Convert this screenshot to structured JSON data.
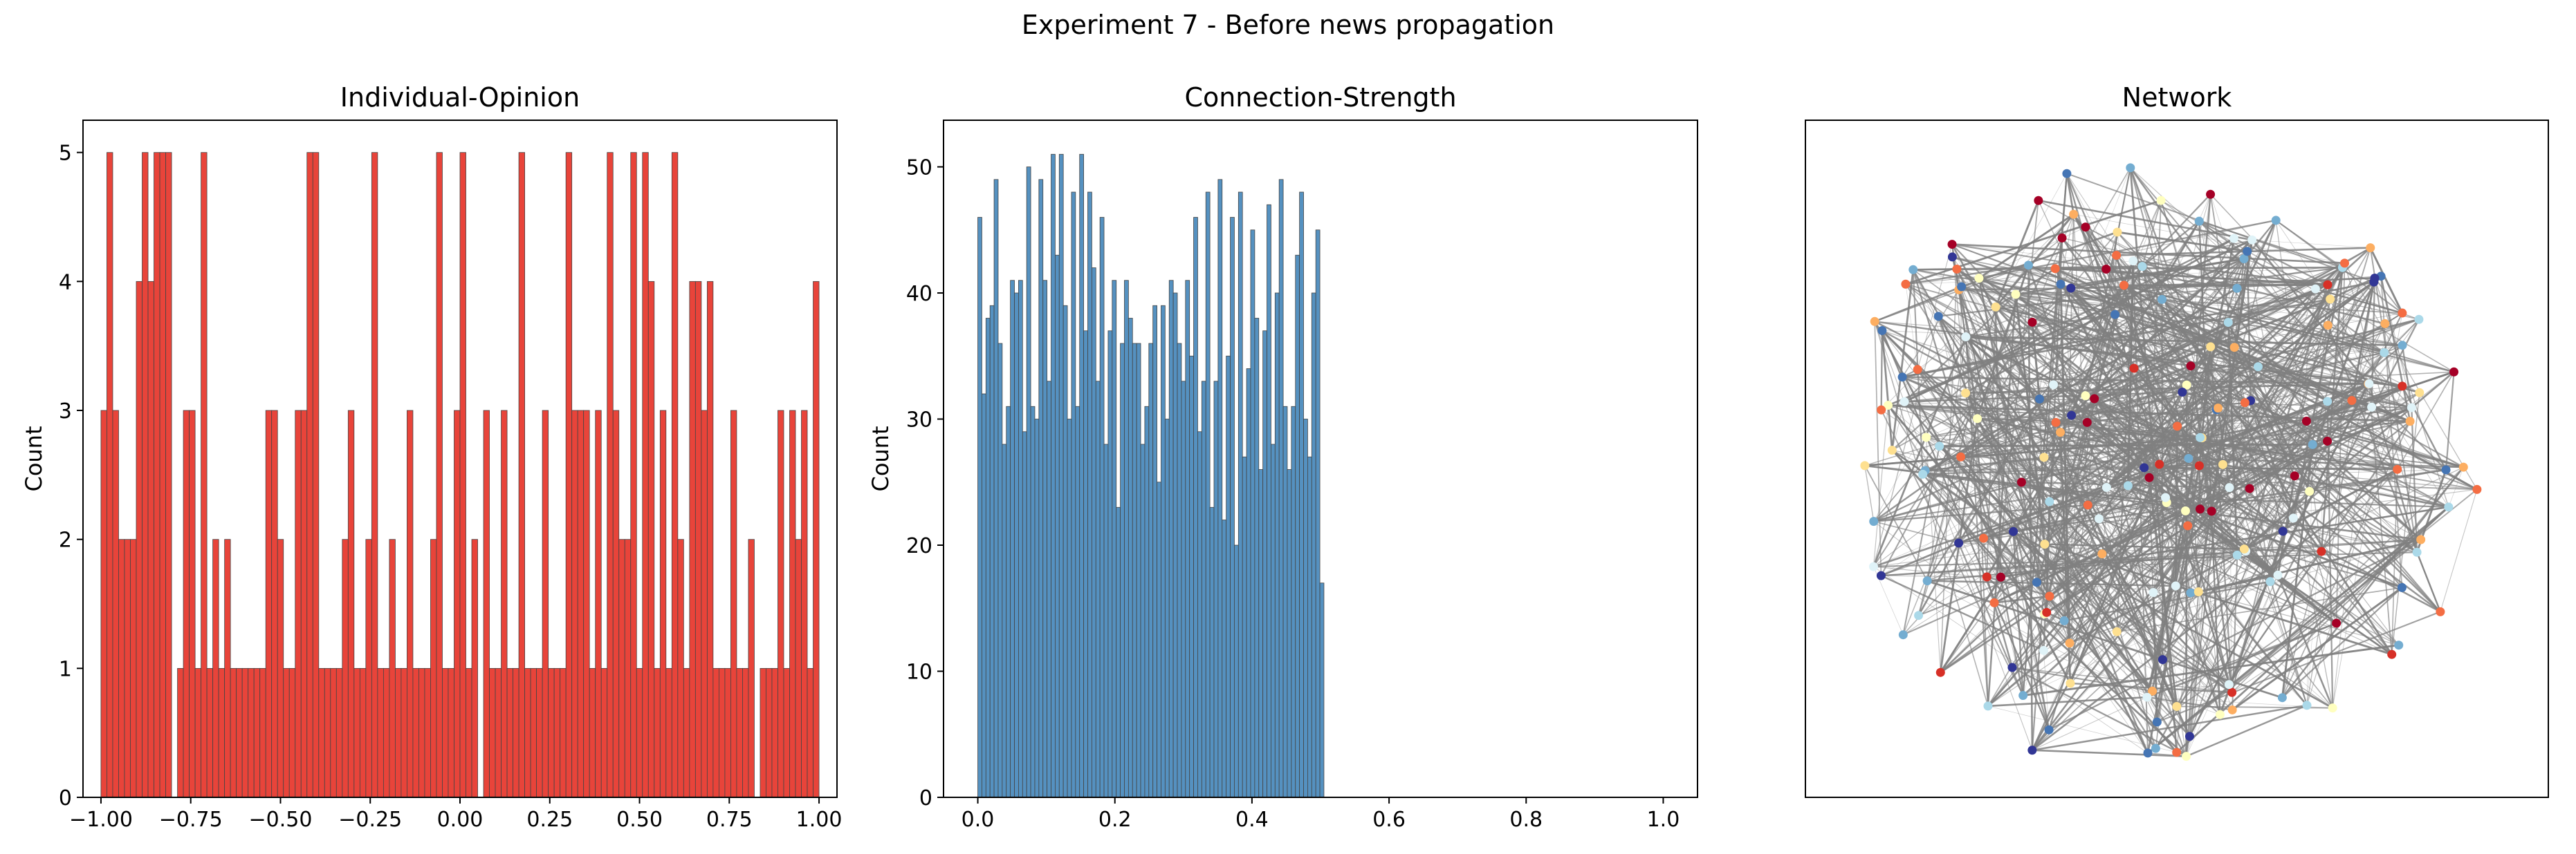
{
  "figure": {
    "suptitle": "Experiment 7 - Before news propagation"
  },
  "chart_data": [
    {
      "type": "bar",
      "title": "Individual-Opinion",
      "xlabel": "",
      "ylabel": "Count",
      "xlim": [
        -1.05,
        1.05
      ],
      "ylim": [
        0,
        5.25
      ],
      "bin_range": [
        -1.0,
        1.0
      ],
      "xticks": [
        -1.0,
        -0.75,
        -0.5,
        -0.25,
        0.0,
        0.25,
        0.5,
        0.75,
        1.0
      ],
      "xtick_labels": [
        "−1.00",
        "−0.75",
        "−0.50",
        "−0.25",
        "0.00",
        "0.25",
        "0.50",
        "0.75",
        "1.00"
      ],
      "yticks": [
        0,
        1,
        2,
        3,
        4,
        5
      ],
      "ytick_labels": [
        "0",
        "1",
        "2",
        "3",
        "4",
        "5"
      ],
      "color": "#e8443a",
      "values": [
        3,
        5,
        3,
        2,
        2,
        2,
        4,
        5,
        4,
        5,
        5,
        5,
        0,
        1,
        3,
        3,
        1,
        5,
        1,
        2,
        1,
        2,
        1,
        1,
        1,
        1,
        1,
        1,
        3,
        3,
        2,
        1,
        1,
        3,
        3,
        5,
        5,
        1,
        1,
        1,
        1,
        2,
        3,
        1,
        1,
        2,
        5,
        1,
        1,
        2,
        1,
        1,
        3,
        1,
        1,
        1,
        2,
        5,
        1,
        1,
        3,
        5,
        1,
        2,
        0,
        3,
        1,
        1,
        3,
        1,
        1,
        5,
        1,
        1,
        1,
        3,
        1,
        1,
        1,
        5,
        3,
        3,
        3,
        1,
        3,
        1,
        5,
        3,
        2,
        2,
        5,
        1,
        5,
        4,
        1,
        3,
        1,
        5,
        2,
        1,
        4,
        4,
        3,
        4,
        1,
        1,
        1,
        3,
        1,
        1,
        2,
        0,
        1,
        1,
        1,
        3,
        1,
        3,
        2,
        3,
        1,
        4
      ]
    },
    {
      "type": "bar",
      "title": "Connection-Strength",
      "xlabel": "",
      "ylabel": "Count",
      "xlim": [
        -0.05,
        1.05
      ],
      "ylim": [
        0,
        53.7
      ],
      "bin_range": [
        0,
        0.505
      ],
      "xticks": [
        0.0,
        0.2,
        0.4,
        0.6,
        0.8,
        1.0
      ],
      "xtick_labels": [
        "0.0",
        "0.2",
        "0.4",
        "0.6",
        "0.8",
        "1.0"
      ],
      "yticks": [
        0,
        10,
        20,
        30,
        40,
        50
      ],
      "ytick_labels": [
        "0",
        "10",
        "20",
        "30",
        "40",
        "50"
      ],
      "color": "#5591c0",
      "values": [
        46,
        32,
        38,
        39,
        49,
        36,
        28,
        31,
        41,
        40,
        41,
        29,
        50,
        31,
        30,
        49,
        41,
        33,
        51,
        43,
        51,
        39,
        30,
        48,
        31,
        51,
        37,
        48,
        42,
        33,
        46,
        28,
        37,
        41,
        23,
        36,
        41,
        38,
        36,
        36,
        28,
        31,
        36,
        39,
        25,
        39,
        30,
        41,
        40,
        36,
        33,
        41,
        35,
        46,
        29,
        33,
        48,
        23,
        33,
        49,
        22,
        35,
        46,
        20,
        48,
        27,
        34,
        45,
        38,
        26,
        37,
        47,
        28,
        40,
        49,
        31,
        26,
        31,
        43,
        48,
        30,
        27,
        40,
        45,
        17
      ]
    }
  ],
  "network": {
    "title": "Network",
    "node_count": 200,
    "edge_color": "#808080",
    "node_colors": [
      "#a50026",
      "#d73027",
      "#f46d43",
      "#fdae61",
      "#fee090",
      "#ffffbf",
      "#e0f3f8",
      "#abd9e9",
      "#74add1",
      "#4575b4",
      "#313695"
    ]
  }
}
